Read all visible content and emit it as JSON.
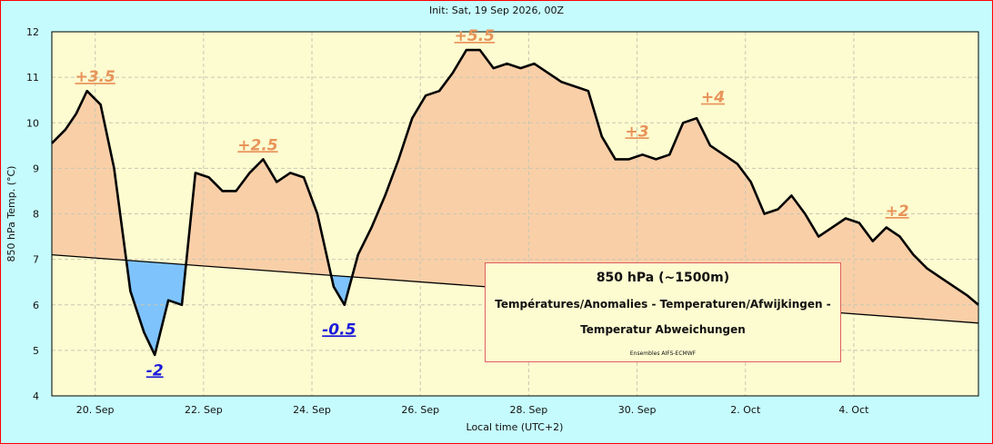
{
  "header": {
    "init_text": "Init: Sat, 19 Sep 2026, 00Z"
  },
  "legend_box": {
    "title": "850 hPa (~1500m)",
    "line1": "Températures/Anomalies - Temperaturen/Afwijkingen -",
    "line2": "Temperatur Abweichungen",
    "source": "Ensembles AIFS-ECMWF"
  },
  "colors": {
    "background": "#c5fbfd",
    "plot_background": "#fdfbd0",
    "frame": "#ff0000",
    "warm_fill": "#f9cfa8",
    "cold_fill": "#7ec3fb",
    "warm_label": "#e8945a",
    "cold_label": "#1a1adb",
    "line": "#000000",
    "grid": "#c8c8b0"
  },
  "chart_data": {
    "type": "area",
    "title": "Init: Sat, 19 Sep 2026, 00Z",
    "xlabel": "Local time (UTC+2)",
    "ylabel": "850 hPa Temp. (°C)",
    "ylim": [
      4,
      12
    ],
    "xlim": [
      19.2,
      36.3
    ],
    "x_unit": "days (Sep 2026, day of month; values > 30 continue into Oct)",
    "y_ticks": [
      "4",
      "5",
      "6",
      "7",
      "8",
      "9",
      "10",
      "11",
      "12"
    ],
    "x_ticks": [
      {
        "x": 20,
        "label": "20. Sep"
      },
      {
        "x": 22,
        "label": "22. Sep"
      },
      {
        "x": 24,
        "label": "24. Sep"
      },
      {
        "x": 26,
        "label": "26. Sep"
      },
      {
        "x": 28,
        "label": "28. Sep"
      },
      {
        "x": 30,
        "label": "30. Sep"
      },
      {
        "x": 32,
        "label": "2. Oct"
      },
      {
        "x": 34,
        "label": "4. Oct"
      }
    ],
    "grid": true,
    "series": [
      {
        "name": "",
        "x": [
          19.2,
          19.45,
          19.65,
          19.85,
          20.1,
          20.35,
          20.65,
          20.9,
          21.1,
          21.35,
          21.6,
          21.85,
          22.1,
          22.35,
          22.6,
          22.85,
          23.1,
          23.35,
          23.6,
          23.85,
          24.1,
          24.4,
          24.6,
          24.85,
          25.1,
          25.35,
          25.6,
          25.85,
          26.1,
          26.35,
          26.6,
          26.85,
          27.1,
          27.35,
          27.6,
          27.85,
          28.1,
          28.6,
          29.1,
          29.35,
          29.6,
          29.85,
          30.1,
          30.35,
          30.6,
          30.85,
          31.1,
          31.35,
          31.85,
          32.1,
          32.35,
          32.6,
          32.85,
          33.1,
          33.35,
          33.85,
          34.1,
          34.35,
          34.6,
          34.85,
          35.1,
          35.35,
          35.6,
          35.85,
          36.1,
          36.3
        ],
        "y": [
          9.55,
          9.85,
          10.2,
          10.7,
          10.4,
          9.0,
          6.3,
          5.4,
          4.9,
          6.1,
          6.0,
          8.9,
          8.8,
          8.5,
          8.5,
          8.9,
          9.2,
          8.7,
          8.9,
          8.8,
          8.0,
          6.4,
          6.0,
          7.1,
          7.7,
          8.4,
          9.2,
          10.1,
          10.6,
          10.7,
          11.1,
          11.6,
          11.6,
          11.2,
          11.3,
          11.2,
          11.3,
          10.9,
          10.7,
          9.7,
          9.2,
          9.2,
          9.3,
          9.2,
          9.3,
          10.0,
          10.1,
          9.5,
          9.1,
          8.7,
          8.0,
          8.1,
          8.4,
          8.0,
          7.5,
          7.9,
          7.8,
          7.4,
          7.7,
          7.5,
          7.1,
          6.8,
          6.6,
          6.4,
          6.2,
          6.0
        ]
      },
      {
        "name": "",
        "x": [
          19.2,
          36.3
        ],
        "y": [
          7.1,
          5.6
        ]
      }
    ],
    "annotations": [
      {
        "text": "+3.5",
        "x": 20.0,
        "y": 10.9,
        "kind": "warm"
      },
      {
        "text": "-2",
        "x": 21.1,
        "y": 4.45,
        "kind": "cold"
      },
      {
        "text": "+2.5",
        "x": 23.0,
        "y": 9.4,
        "kind": "warm"
      },
      {
        "text": "-0.5",
        "x": 24.5,
        "y": 5.35,
        "kind": "cold"
      },
      {
        "text": "+5.5",
        "x": 27.0,
        "y": 11.8,
        "kind": "warm"
      },
      {
        "text": "+3",
        "x": 30.0,
        "y": 9.7,
        "kind": "warm"
      },
      {
        "text": "+4",
        "x": 31.4,
        "y": 10.45,
        "kind": "warm"
      },
      {
        "text": "+2",
        "x": 34.8,
        "y": 7.95,
        "kind": "warm"
      }
    ]
  }
}
